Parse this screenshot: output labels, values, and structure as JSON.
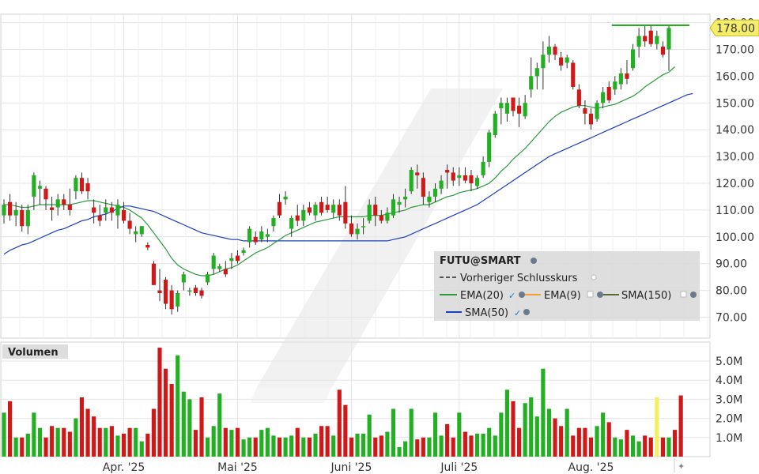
{
  "chart_data": [
    {
      "type": "candlestick",
      "name": "price",
      "title": "FUTU@SMART",
      "ylim": [
        62,
        182
      ],
      "y_ticks": [
        "70.00",
        "80.00",
        "90.00",
        "100.00",
        "110.00",
        "120.00",
        "130.00",
        "140.00",
        "150.00",
        "160.00",
        "170.00",
        "180.00"
      ],
      "y_tick_values": [
        70,
        80,
        90,
        100,
        110,
        120,
        130,
        140,
        150,
        160,
        170,
        180
      ],
      "last_price": "178.00",
      "grid": true,
      "legend": {
        "placement": "lower-right",
        "title": "FUTU@SMART",
        "items": [
          "Vorheriger Schlusskurs",
          "EMA(20)",
          "EMA(9)",
          "SMA(150)",
          "SMA(50)"
        ]
      },
      "colors": {
        "up": "#22b022",
        "down": "#d01818",
        "ema20": "#2a9a3a",
        "sma50": "#1a3fc0",
        "ema9": "#f0a030",
        "sma150": "#556b2f",
        "last": "#f5ee6a",
        "prev_close": "#555555"
      },
      "candles": [
        {
          "o": 108,
          "h": 114,
          "l": 105,
          "c": 112
        },
        {
          "o": 113,
          "h": 116,
          "l": 106,
          "c": 108
        },
        {
          "o": 108,
          "h": 113,
          "l": 104,
          "c": 110
        },
        {
          "o": 110,
          "h": 112,
          "l": 102,
          "c": 104
        },
        {
          "o": 104,
          "h": 112,
          "l": 101,
          "c": 110
        },
        {
          "o": 115,
          "h": 124,
          "l": 110,
          "c": 123
        },
        {
          "o": 118,
          "h": 121,
          "l": 112,
          "c": 119
        },
        {
          "o": 118,
          "h": 119,
          "l": 110,
          "c": 114
        },
        {
          "o": 111,
          "h": 115,
          "l": 106,
          "c": 110
        },
        {
          "o": 111,
          "h": 116,
          "l": 108,
          "c": 114
        },
        {
          "o": 114,
          "h": 116,
          "l": 110,
          "c": 112
        },
        {
          "o": 112,
          "h": 118,
          "l": 108,
          "c": 110
        },
        {
          "o": 117,
          "h": 123,
          "l": 114,
          "c": 122
        },
        {
          "o": 122,
          "h": 124,
          "l": 116,
          "c": 117
        },
        {
          "o": 120,
          "h": 122,
          "l": 114,
          "c": 117
        },
        {
          "o": 111,
          "h": 114,
          "l": 105,
          "c": 109
        },
        {
          "o": 108,
          "h": 112,
          "l": 104,
          "c": 106
        },
        {
          "o": 109,
          "h": 114,
          "l": 106,
          "c": 111
        },
        {
          "o": 111,
          "h": 113,
          "l": 106,
          "c": 109
        },
        {
          "o": 108,
          "h": 114,
          "l": 103,
          "c": 112
        },
        {
          "o": 110,
          "h": 113,
          "l": 105,
          "c": 106
        },
        {
          "o": 106,
          "h": 109,
          "l": 101,
          "c": 103
        },
        {
          "o": 101,
          "h": 104,
          "l": 98,
          "c": 102
        },
        {
          "o": 101,
          "h": 104,
          "l": 100,
          "c": 104
        },
        {
          "o": 97,
          "h": 98,
          "l": 95,
          "c": 96
        },
        {
          "o": 90,
          "h": 91,
          "l": 82,
          "c": 82
        },
        {
          "o": 80,
          "h": 88,
          "l": 76,
          "c": 79
        },
        {
          "o": 84,
          "h": 85,
          "l": 73,
          "c": 75
        },
        {
          "o": 80,
          "h": 82,
          "l": 71,
          "c": 73
        },
        {
          "o": 74,
          "h": 80,
          "l": 72,
          "c": 79
        },
        {
          "o": 83,
          "h": 87,
          "l": 80,
          "c": 86
        },
        {
          "o": 80,
          "h": 81,
          "l": 78,
          "c": 80
        },
        {
          "o": 81,
          "h": 82,
          "l": 78,
          "c": 79
        },
        {
          "o": 80,
          "h": 81,
          "l": 77,
          "c": 78
        },
        {
          "o": 83,
          "h": 87,
          "l": 82,
          "c": 86
        },
        {
          "o": 88,
          "h": 94,
          "l": 86,
          "c": 93
        },
        {
          "o": 88,
          "h": 90,
          "l": 87,
          "c": 89
        },
        {
          "o": 88,
          "h": 91,
          "l": 85,
          "c": 86
        },
        {
          "o": 91,
          "h": 94,
          "l": 88,
          "c": 92
        },
        {
          "o": 93,
          "h": 95,
          "l": 90,
          "c": 91
        },
        {
          "o": 94,
          "h": 96,
          "l": 93,
          "c": 95
        },
        {
          "o": 98,
          "h": 104,
          "l": 96,
          "c": 103
        },
        {
          "o": 100,
          "h": 102,
          "l": 97,
          "c": 98
        },
        {
          "o": 99,
          "h": 104,
          "l": 98,
          "c": 102
        },
        {
          "o": 100,
          "h": 103,
          "l": 98,
          "c": 101
        },
        {
          "o": 104,
          "h": 108,
          "l": 102,
          "c": 107
        },
        {
          "o": 113,
          "h": 116,
          "l": 107,
          "c": 108
        },
        {
          "o": 114,
          "h": 117,
          "l": 112,
          "c": 115
        },
        {
          "o": 103,
          "h": 108,
          "l": 100,
          "c": 107
        },
        {
          "o": 108,
          "h": 112,
          "l": 104,
          "c": 106
        },
        {
          "o": 106,
          "h": 112,
          "l": 104,
          "c": 110
        },
        {
          "o": 111,
          "h": 113,
          "l": 108,
          "c": 109
        },
        {
          "o": 108,
          "h": 113,
          "l": 106,
          "c": 112
        },
        {
          "o": 113,
          "h": 115,
          "l": 108,
          "c": 109
        },
        {
          "o": 112,
          "h": 115,
          "l": 109,
          "c": 110
        },
        {
          "o": 109,
          "h": 114,
          "l": 107,
          "c": 112
        },
        {
          "o": 112,
          "h": 114,
          "l": 106,
          "c": 108
        },
        {
          "o": 113,
          "h": 119,
          "l": 103,
          "c": 105
        },
        {
          "o": 105,
          "h": 108,
          "l": 100,
          "c": 101
        },
        {
          "o": 101,
          "h": 105,
          "l": 99,
          "c": 103
        },
        {
          "o": 104,
          "h": 107,
          "l": 101,
          "c": 104
        },
        {
          "o": 106,
          "h": 114,
          "l": 105,
          "c": 112
        },
        {
          "o": 112,
          "h": 115,
          "l": 104,
          "c": 108
        },
        {
          "o": 108,
          "h": 110,
          "l": 105,
          "c": 106
        },
        {
          "o": 106,
          "h": 111,
          "l": 105,
          "c": 109
        },
        {
          "o": 108,
          "h": 116,
          "l": 107,
          "c": 114
        },
        {
          "o": 112,
          "h": 115,
          "l": 109,
          "c": 113
        },
        {
          "o": 114,
          "h": 118,
          "l": 111,
          "c": 115
        },
        {
          "o": 117,
          "h": 126,
          "l": 116,
          "c": 125
        },
        {
          "o": 124,
          "h": 127,
          "l": 118,
          "c": 123
        },
        {
          "o": 122,
          "h": 124,
          "l": 112,
          "c": 115
        },
        {
          "o": 113,
          "h": 117,
          "l": 111,
          "c": 115
        },
        {
          "o": 115,
          "h": 120,
          "l": 113,
          "c": 118
        },
        {
          "o": 118,
          "h": 123,
          "l": 116,
          "c": 121
        },
        {
          "o": 125,
          "h": 127,
          "l": 118,
          "c": 124
        },
        {
          "o": 124,
          "h": 126,
          "l": 119,
          "c": 121
        },
        {
          "o": 122,
          "h": 126,
          "l": 119,
          "c": 123
        },
        {
          "o": 123,
          "h": 126,
          "l": 120,
          "c": 121
        },
        {
          "o": 123,
          "h": 125,
          "l": 117,
          "c": 120
        },
        {
          "o": 119,
          "h": 123,
          "l": 118,
          "c": 122
        },
        {
          "o": 123,
          "h": 130,
          "l": 122,
          "c": 128
        },
        {
          "o": 128,
          "h": 140,
          "l": 126,
          "c": 139
        },
        {
          "o": 138,
          "h": 147,
          "l": 137,
          "c": 146
        },
        {
          "o": 148,
          "h": 152,
          "l": 142,
          "c": 150
        },
        {
          "o": 146,
          "h": 152,
          "l": 143,
          "c": 150
        },
        {
          "o": 152,
          "h": 152,
          "l": 145,
          "c": 147
        },
        {
          "o": 149,
          "h": 152,
          "l": 141,
          "c": 146
        },
        {
          "o": 145,
          "h": 153,
          "l": 144,
          "c": 150
        },
        {
          "o": 155,
          "h": 167,
          "l": 152,
          "c": 160
        },
        {
          "o": 160,
          "h": 165,
          "l": 155,
          "c": 163
        },
        {
          "o": 163,
          "h": 173,
          "l": 155,
          "c": 168
        },
        {
          "o": 168,
          "h": 175,
          "l": 165,
          "c": 171
        },
        {
          "o": 171,
          "h": 172,
          "l": 166,
          "c": 168
        },
        {
          "o": 167,
          "h": 169,
          "l": 162,
          "c": 164
        },
        {
          "o": 165,
          "h": 168,
          "l": 163,
          "c": 167
        },
        {
          "o": 165,
          "h": 166,
          "l": 155,
          "c": 156
        },
        {
          "o": 155,
          "h": 157,
          "l": 148,
          "c": 149
        },
        {
          "o": 148,
          "h": 151,
          "l": 142,
          "c": 146
        },
        {
          "o": 146,
          "h": 148,
          "l": 140,
          "c": 142
        },
        {
          "o": 144,
          "h": 151,
          "l": 143,
          "c": 150
        },
        {
          "o": 150,
          "h": 156,
          "l": 148,
          "c": 154
        },
        {
          "o": 156,
          "h": 158,
          "l": 150,
          "c": 151
        },
        {
          "o": 155,
          "h": 160,
          "l": 153,
          "c": 158
        },
        {
          "o": 157,
          "h": 163,
          "l": 155,
          "c": 161
        },
        {
          "o": 161,
          "h": 166,
          "l": 157,
          "c": 159
        },
        {
          "o": 163,
          "h": 172,
          "l": 162,
          "c": 170
        },
        {
          "o": 171,
          "h": 178,
          "l": 167,
          "c": 175
        },
        {
          "o": 175,
          "h": 179,
          "l": 171,
          "c": 173
        },
        {
          "o": 177,
          "h": 179,
          "l": 171,
          "c": 172
        },
        {
          "o": 172,
          "h": 177,
          "l": 170,
          "c": 175
        },
        {
          "o": 171,
          "h": 173,
          "l": 167,
          "c": 168
        },
        {
          "o": 170,
          "h": 179,
          "l": 162,
          "c": 178
        }
      ],
      "ema20": [
        112,
        112,
        111.5,
        111,
        111,
        111.5,
        112,
        112,
        112,
        112,
        112,
        112,
        112.5,
        113,
        113.5,
        113.5,
        113,
        112.5,
        112,
        111.5,
        111,
        110,
        108.5,
        107,
        104.5,
        101.5,
        98.5,
        95.5,
        92,
        89.5,
        88,
        87,
        86,
        85.5,
        85.5,
        86,
        87,
        88,
        88.5,
        89.5,
        91,
        92.5,
        94,
        95,
        96,
        97.5,
        99,
        100.5,
        101.5,
        102.5,
        103.5,
        104.5,
        105.5,
        106,
        106.5,
        107,
        107.5,
        107.5,
        107.5,
        107.5,
        107.5,
        108,
        108,
        108,
        108.5,
        109,
        109.5,
        110,
        111,
        111.5,
        112,
        112,
        113,
        114,
        115,
        115.5,
        116.5,
        117,
        117.5,
        118,
        119,
        120,
        122,
        124.5,
        126.5,
        129,
        131,
        133,
        135.5,
        138,
        140.5,
        143,
        145,
        146.5,
        147.5,
        148.5,
        149,
        149,
        148.5,
        148,
        148.5,
        149,
        149.5,
        150.5,
        151.5,
        152.5,
        154,
        156,
        157.5,
        159,
        160.5,
        161.5,
        163.5
      ],
      "sma50": [
        93.5,
        95,
        96,
        97,
        97.5,
        98.5,
        99.5,
        100.5,
        101.5,
        102.5,
        103,
        104,
        105,
        106,
        106.5,
        107.5,
        108,
        108.5,
        109.5,
        110.5,
        111.5,
        111.5,
        111,
        110.5,
        110,
        109.5,
        108.5,
        107.5,
        106.5,
        105.5,
        104.5,
        103.5,
        102.5,
        101.5,
        101,
        100.5,
        100,
        99.5,
        99,
        99,
        98.5,
        98.5,
        98.5,
        98.5,
        98.5,
        98.5,
        98.5,
        98.5,
        98.5,
        98.5,
        98.5,
        98.5,
        98.5,
        98.5,
        98.5,
        98.5,
        98.5,
        98.5,
        98.5,
        98.5,
        98.5,
        98.5,
        98.5,
        98.5,
        98.5,
        99,
        99.5,
        100,
        101,
        102,
        103,
        104,
        105,
        106,
        107,
        108,
        109,
        110,
        111,
        112,
        113.5,
        115,
        116.5,
        118,
        119.5,
        121,
        122.5,
        124,
        125.5,
        127,
        128.5,
        130,
        131,
        132,
        133,
        134,
        135,
        136,
        137,
        138,
        139,
        140,
        141,
        142,
        143,
        144,
        145,
        146,
        147,
        148,
        149,
        150,
        151,
        152,
        153,
        153.5
      ],
      "prev_close_line": {
        "from_index": 102,
        "value": 179
      }
    },
    {
      "type": "bar",
      "name": "volume",
      "title": "Volumen",
      "ylim": [
        0,
        6.0
      ],
      "unit": "M",
      "y_ticks": [
        "1.0M",
        "2.0M",
        "3.0M",
        "4.0M",
        "5.0M"
      ],
      "y_tick_values": [
        1,
        2,
        3,
        4,
        5
      ],
      "values": [
        2.3,
        2.9,
        1.0,
        1.0,
        1.2,
        2.3,
        1.5,
        1.0,
        1.6,
        1.5,
        1.5,
        1.3,
        2.0,
        3.1,
        2.5,
        2.1,
        1.5,
        1.5,
        1.6,
        1.1,
        1.2,
        1.5,
        1.5,
        0.8,
        1.2,
        2.5,
        5.7,
        4.6,
        3.8,
        5.3,
        3.4,
        3.0,
        1.4,
        3.1,
        1.0,
        1.6,
        3.3,
        1.5,
        1.4,
        1.5,
        0.9,
        1.0,
        1.0,
        1.4,
        1.5,
        1.1,
        1.0,
        1.0,
        1.1,
        1.5,
        1.0,
        1.0,
        1.2,
        1.6,
        1.6,
        1.1,
        3.5,
        2.7,
        1.0,
        1.2,
        1.2,
        2.2,
        1.0,
        1.1,
        1.3,
        2.5,
        0.5,
        0.8,
        2.5,
        0.9,
        1.0,
        1.0,
        2.3,
        1.1,
        1.7,
        1.0,
        2.3,
        1.3,
        1.1,
        1.2,
        1.2,
        1.5,
        1.1,
        2.3,
        3.5,
        2.9,
        1.5,
        2.8,
        3.1,
        2.1,
        4.6,
        2.5,
        2.0,
        1.6,
        2.5,
        1.1,
        1.5,
        1.5,
        1.0,
        1.6,
        2.3,
        1.8,
        1.0,
        0.9,
        1.4,
        1.1,
        0.8,
        1.1,
        1.0,
        3.1,
        1.0,
        1.0,
        1.4,
        3.2
      ],
      "colors_up_down": "same_as_price",
      "grid": true
    }
  ],
  "x_axis": {
    "labels": [
      "Apr. '25",
      "Mai '25",
      "Juni '25",
      "Juli '25",
      "Aug. '25"
    ],
    "label_index": [
      20,
      39,
      58,
      76,
      98
    ]
  },
  "icons": [
    "settings-icon",
    "eye-icon",
    "checkmark-icon",
    "plus-icon"
  ]
}
